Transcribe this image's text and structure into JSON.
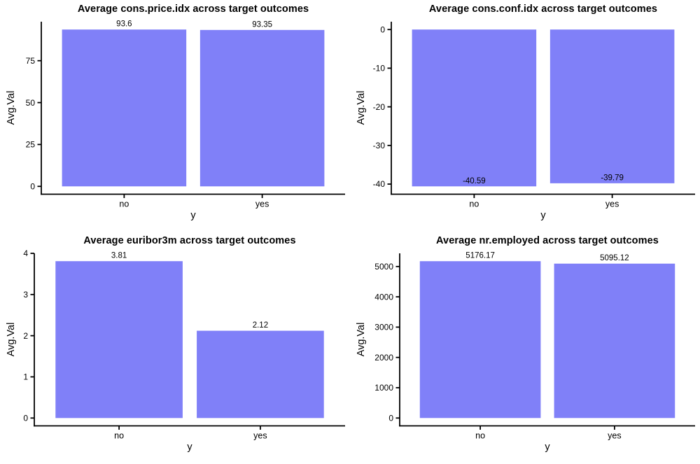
{
  "page": {
    "background": "#ffffff",
    "text_color": "#000000"
  },
  "chart_data": [
    {
      "type": "bar",
      "title": "Average cons.price.idx across target outcomes",
      "xlabel": "y",
      "ylabel": "Avg.Val",
      "categories": [
        "no",
        "yes"
      ],
      "values": [
        93.6,
        93.35
      ],
      "value_labels": [
        "93.6",
        "93.35"
      ],
      "yticks": [
        0,
        25,
        50,
        75
      ],
      "ytick_labels": [
        "0",
        "25",
        "50",
        "75"
      ],
      "ylim": [
        -4.68,
        98.28
      ],
      "bar_color": "#8080F8",
      "axis_color": "#000000",
      "grid": false,
      "legend": false
    },
    {
      "type": "bar",
      "title": "Average cons.conf.idx across target outcomes",
      "xlabel": "y",
      "ylabel": "Avg.Val",
      "categories": [
        "no",
        "yes"
      ],
      "values": [
        -40.59,
        -39.79
      ],
      "value_labels": [
        "-40.59",
        "-39.79"
      ],
      "yticks": [
        0,
        -10,
        -20,
        -30,
        -40
      ],
      "ytick_labels": [
        "0",
        "-10",
        "-20",
        "-30",
        "-40"
      ],
      "ylim": [
        -42.62,
        2.03
      ],
      "bar_color": "#8080F8",
      "axis_color": "#000000",
      "grid": false,
      "legend": false
    },
    {
      "type": "bar",
      "title": "Average euribor3m across target outcomes",
      "xlabel": "y",
      "ylabel": "Avg.Val",
      "categories": [
        "no",
        "yes"
      ],
      "values": [
        3.81,
        2.12
      ],
      "value_labels": [
        "3.81",
        "2.12"
      ],
      "yticks": [
        0,
        1,
        2,
        3,
        4
      ],
      "ytick_labels": [
        "0",
        "1",
        "2",
        "3",
        "4"
      ],
      "ylim": [
        -0.19,
        4.0
      ],
      "bar_color": "#8080F8",
      "axis_color": "#000000",
      "grid": false,
      "legend": false
    },
    {
      "type": "bar",
      "title": "Average nr.employed across target outcomes",
      "xlabel": "y",
      "ylabel": "Avg.Val",
      "categories": [
        "no",
        "yes"
      ],
      "values": [
        5176.17,
        5095.12
      ],
      "value_labels": [
        "5176.17",
        "5095.12"
      ],
      "yticks": [
        0,
        1000,
        2000,
        3000,
        4000,
        5000
      ],
      "ytick_labels": [
        "0",
        "1000",
        "2000",
        "3000",
        "4000",
        "5000"
      ],
      "ylim": [
        -258.81,
        5435.0
      ],
      "bar_color": "#8080F8",
      "axis_color": "#000000",
      "grid": false,
      "legend": false
    }
  ]
}
